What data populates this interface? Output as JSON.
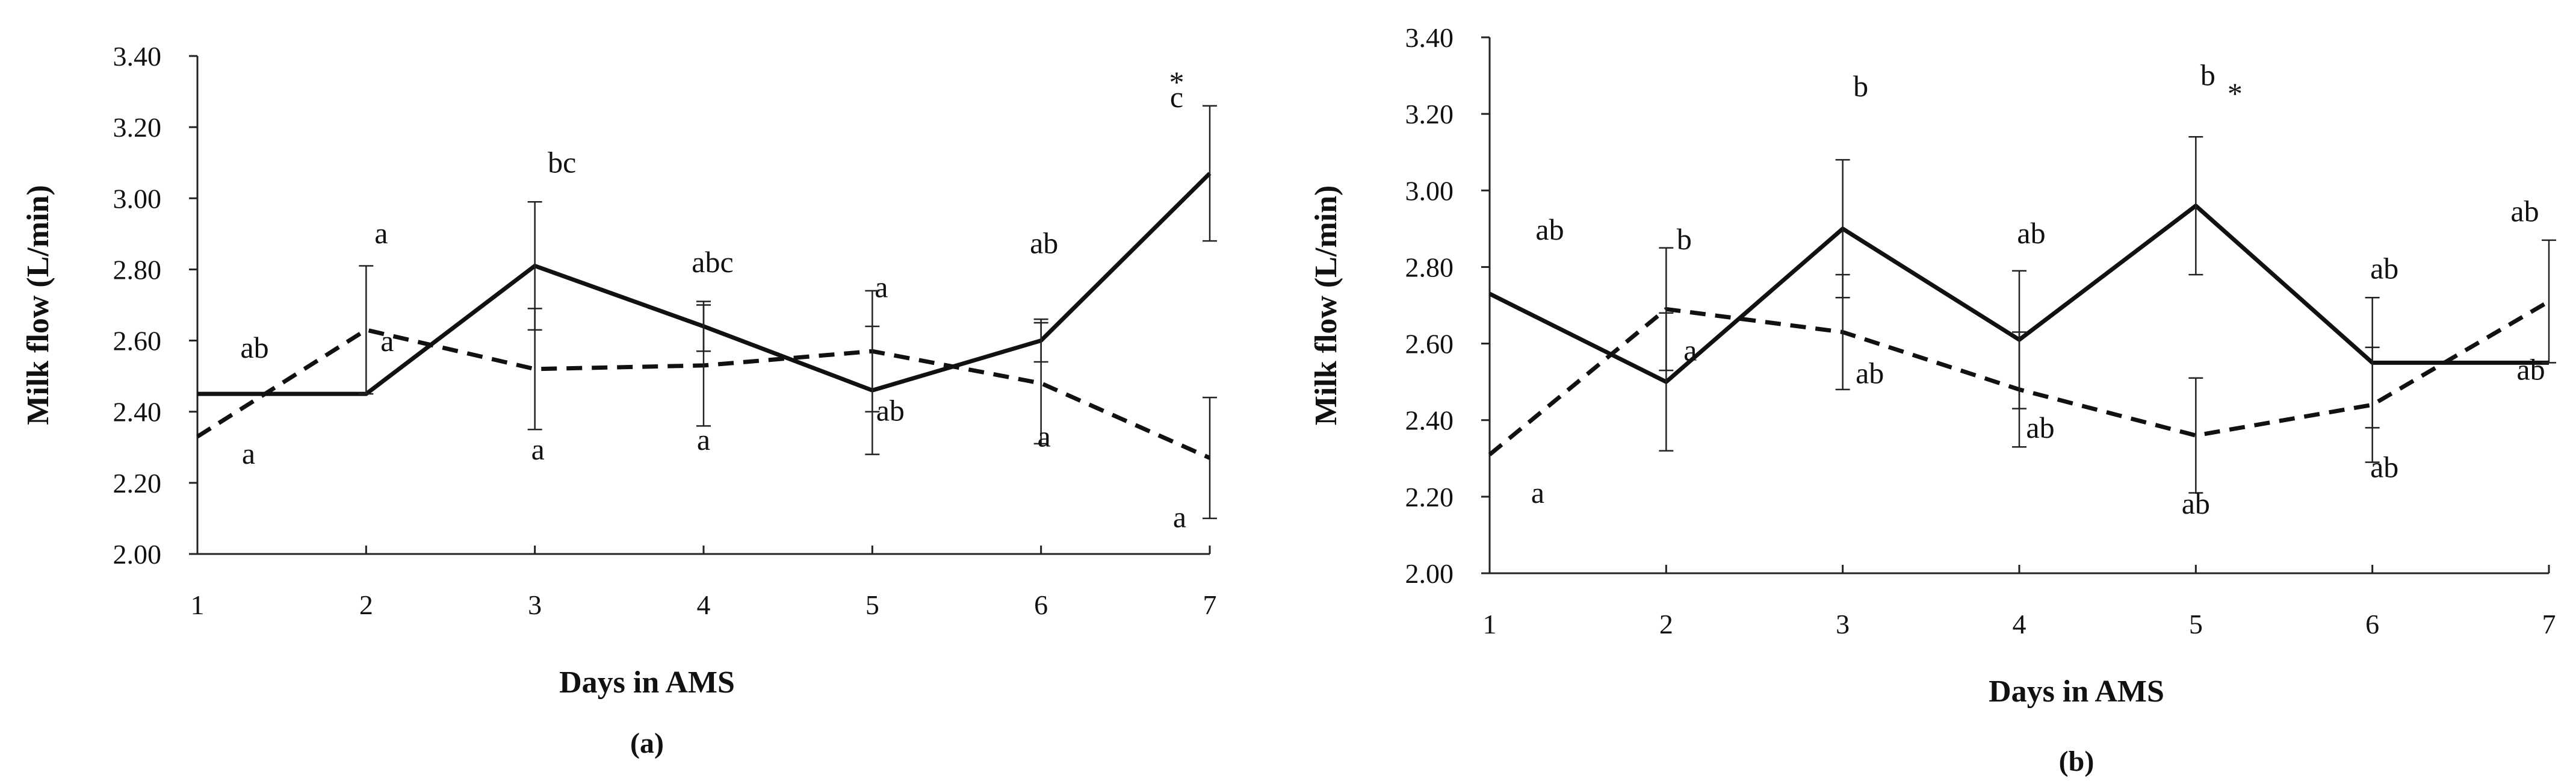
{
  "chart_data": [
    {
      "type": "line",
      "panel_label": "(a)",
      "xlabel": "Days in AMS",
      "ylabel": "Milk flow (L/min)",
      "x": [
        1,
        2,
        3,
        4,
        5,
        6,
        7
      ],
      "x_tick_labels": [
        "1",
        "2",
        "3",
        "4",
        "5",
        "6",
        "7"
      ],
      "ylim": [
        2.0,
        3.4
      ],
      "y_tick_labels": [
        "2.00",
        "2.20",
        "2.40",
        "2.60",
        "2.80",
        "3.00",
        "3.20",
        "3.40"
      ],
      "series": [
        {
          "style": "solid",
          "values": [
            2.45,
            2.45,
            2.81,
            2.64,
            2.46,
            2.6,
            3.07
          ],
          "error": [
            0.0,
            0.0,
            0.18,
            0.07,
            0.18,
            0.06,
            0.19
          ],
          "letters": [
            "ab",
            "a",
            "bc",
            "abc",
            "a",
            "ab",
            "c"
          ]
        },
        {
          "style": "dashed",
          "values": [
            2.33,
            2.63,
            2.52,
            2.53,
            2.57,
            2.48,
            2.27
          ],
          "error": [
            0.0,
            0.18,
            0.17,
            0.17,
            0.17,
            0.17,
            0.17
          ],
          "letters": [
            "a",
            "a",
            "a",
            "a",
            "ab",
            "a",
            "a"
          ]
        }
      ],
      "annotations": [
        {
          "x": 7,
          "text": "*"
        }
      ]
    },
    {
      "type": "line",
      "panel_label": "(b)",
      "xlabel": "Days in AMS",
      "ylabel": "Milk flow (L/min)",
      "x": [
        1,
        2,
        3,
        4,
        5,
        6,
        7
      ],
      "x_tick_labels": [
        "1",
        "2",
        "3",
        "4",
        "5",
        "6",
        "7"
      ],
      "ylim": [
        2.0,
        3.4
      ],
      "y_tick_labels": [
        "2.00",
        "2.20",
        "2.40",
        "2.60",
        "2.80",
        "3.00",
        "3.20",
        "3.40"
      ],
      "series": [
        {
          "style": "solid",
          "values": [
            2.73,
            2.5,
            2.9,
            2.61,
            2.96,
            2.55,
            2.55
          ],
          "error": [
            0.0,
            0.18,
            0.18,
            0.18,
            0.18,
            0.17,
            0.0
          ],
          "letters": [
            "ab",
            "b",
            "b",
            "ab",
            "b",
            "ab",
            "ab"
          ]
        },
        {
          "style": "dashed",
          "values": [
            2.31,
            2.69,
            2.63,
            2.48,
            2.36,
            2.44,
            2.71
          ],
          "error": [
            0.0,
            0.16,
            0.15,
            0.15,
            0.15,
            0.15,
            0.16
          ],
          "letters": [
            "a",
            "a",
            "ab",
            "ab",
            "ab",
            "ab",
            "ab"
          ]
        }
      ],
      "annotations": [
        {
          "x": 5,
          "text": "*"
        }
      ]
    }
  ]
}
